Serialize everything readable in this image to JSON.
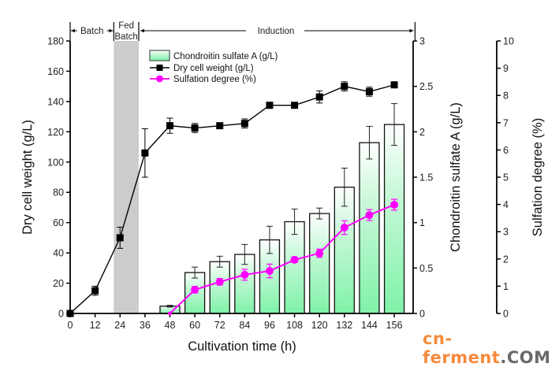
{
  "chart_data": {
    "type": "bar",
    "title": "",
    "xlabel": "Cultivation time (h)",
    "x_ticks": [
      0,
      12,
      24,
      36,
      48,
      60,
      72,
      84,
      96,
      108,
      120,
      132,
      144,
      156
    ],
    "xlim": [
      0,
      166
    ],
    "phases": [
      {
        "label": "Batch",
        "start": 0,
        "end": 21
      },
      {
        "label_line1": "Fed",
        "label_line2": "Batch",
        "start": 21,
        "end": 33,
        "shaded": true
      },
      {
        "label": "Induction",
        "start": 33,
        "end": 165
      }
    ],
    "axes": {
      "left": {
        "label": "Dry cell weight (g/L)",
        "ylim": [
          0,
          180
        ],
        "ticks": [
          0,
          20,
          40,
          60,
          80,
          100,
          120,
          140,
          160,
          180
        ]
      },
      "right1": {
        "label": "Chondroitin sulfate A (g/L)",
        "ylim": [
          0,
          3
        ],
        "ticks": [
          "0",
          "0.5",
          "1",
          "1.5",
          "2",
          "2.5",
          "3"
        ]
      },
      "right2": {
        "label": "Sulfation degree (%)",
        "ylim": [
          0,
          10
        ],
        "ticks": [
          0,
          1,
          2,
          3,
          4,
          5,
          6,
          7,
          8,
          9,
          10
        ]
      }
    },
    "series": [
      {
        "name": "Chondroitin sulfate A (g/L)",
        "kind": "bar",
        "axis": "right1",
        "color": "#7ff2a8",
        "x": [
          48,
          60,
          72,
          84,
          96,
          108,
          120,
          132,
          144,
          156
        ],
        "values": [
          0.08,
          0.45,
          0.57,
          0.65,
          0.81,
          1.01,
          1.1,
          1.39,
          1.88,
          2.08
        ],
        "errors": [
          0.01,
          0.06,
          0.06,
          0.11,
          0.15,
          0.14,
          0.06,
          0.21,
          0.18,
          0.23
        ]
      },
      {
        "name": "Dry cell weight (g/L)",
        "kind": "line",
        "marker": "square",
        "axis": "left",
        "color": "#000000",
        "x": [
          0,
          12,
          24,
          36,
          48,
          60,
          72,
          84,
          96,
          108,
          120,
          132,
          144,
          156
        ],
        "values": [
          0,
          15,
          50,
          106,
          124,
          122.5,
          124,
          125.5,
          137.5,
          137.5,
          143,
          150,
          146.5,
          151
        ],
        "errors": [
          0,
          3,
          7,
          16,
          5,
          3,
          0,
          3,
          0,
          0,
          4,
          3,
          3,
          0
        ]
      },
      {
        "name": "Sulfation degree (%)",
        "kind": "line",
        "marker": "circle",
        "axis": "right2",
        "color": "#ff00ff",
        "x": [
          48,
          60,
          72,
          84,
          96,
          108,
          120,
          132,
          144,
          156
        ],
        "values": [
          0,
          0.87,
          1.16,
          1.42,
          1.56,
          1.97,
          2.21,
          3.15,
          3.61,
          3.99
        ],
        "errors": [
          0,
          0.12,
          0.12,
          0.2,
          0.25,
          0.1,
          0.15,
          0.25,
          0.2,
          0.2
        ]
      }
    ],
    "legend": {
      "placement": "top-center",
      "entries": [
        "Chondroitin sulfate A (g/L)",
        "Dry cell weight (g/L)",
        "Sulfation degree (%)"
      ]
    },
    "grid": false
  },
  "watermark": {
    "part1": "cn-ferment",
    "part2": ".COM"
  }
}
